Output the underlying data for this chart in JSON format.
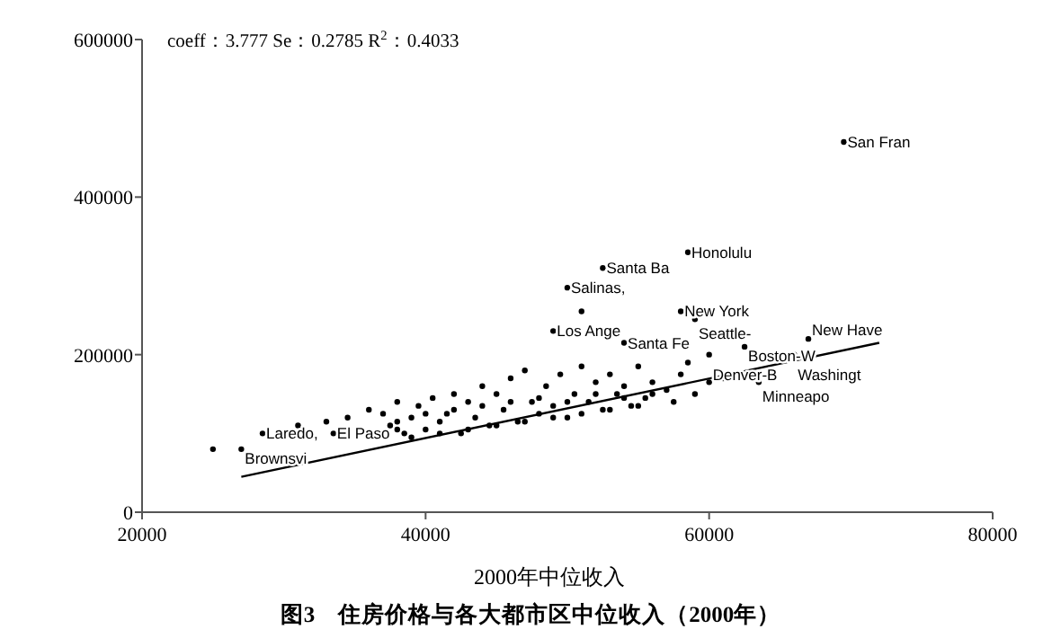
{
  "chart_data": {
    "type": "scatter",
    "title": "图3　住房价格与各大都市区中位收入（2000年）",
    "xlabel": "2000年中位收入",
    "xlim": [
      20000,
      80000
    ],
    "xticks": [
      20000,
      40000,
      60000,
      80000
    ],
    "ylim": [
      0,
      600000
    ],
    "yticks": [
      0,
      200000,
      400000,
      600000
    ],
    "series": [
      {
        "marker": "circle",
        "color": "#000000",
        "x": [
          69500,
          58500,
          52500,
          50000,
          54000,
          51000,
          49000,
          58000,
          59000,
          62500,
          67000,
          66000,
          60000,
          63500,
          58500,
          28500,
          33500,
          27000,
          25000,
          31000,
          33000,
          34500,
          38000,
          36000,
          39000,
          37000,
          37500,
          38000,
          38500,
          39000,
          39500,
          40000,
          40500,
          41000,
          41500,
          42000,
          42500,
          43000,
          43500,
          44000,
          44500,
          45000,
          45500,
          46000,
          46500,
          47000,
          47500,
          48000,
          48500,
          49000,
          49500,
          50000,
          50500,
          51000,
          51500,
          52000,
          52500,
          53000,
          53500,
          54000,
          54500,
          55000,
          55500,
          56000,
          57000,
          57500,
          58000,
          59000,
          60000,
          61000,
          38000,
          40000,
          42000,
          44000,
          46000,
          48000,
          50000,
          52000,
          54000,
          56000,
          41000,
          43000,
          45000,
          47000,
          49000,
          51000,
          53000,
          55000
        ],
        "values": [
          470000,
          330000,
          310000,
          285000,
          215000,
          255000,
          230000,
          255000,
          245000,
          210000,
          220000,
          200000,
          200000,
          165000,
          190000,
          100000,
          100000,
          80000,
          80000,
          110000,
          115000,
          120000,
          105000,
          130000,
          95000,
          125000,
          110000,
          140000,
          100000,
          120000,
          135000,
          105000,
          145000,
          115000,
          125000,
          150000,
          100000,
          140000,
          120000,
          160000,
          110000,
          150000,
          130000,
          170000,
          115000,
          180000,
          140000,
          125000,
          160000,
          135000,
          175000,
          120000,
          150000,
          185000,
          140000,
          165000,
          130000,
          175000,
          150000,
          160000,
          135000,
          185000,
          145000,
          165000,
          155000,
          140000,
          175000,
          150000,
          165000,
          170000,
          115000,
          125000,
          130000,
          135000,
          140000,
          145000,
          140000,
          150000,
          145000,
          150000,
          100000,
          105000,
          110000,
          115000,
          120000,
          125000,
          130000,
          135000
        ]
      },
      {
        "type": "line",
        "color": "#000000",
        "x": [
          27000,
          72000
        ],
        "values": [
          45000,
          215000
        ]
      }
    ],
    "annotations": [
      "coeff：3.777 Se：0.2785 R$^{2}$：0.4033",
      {
        "text": "San Fran",
        "x": 69500,
        "y": 470000
      },
      {
        "text": "Honolulu",
        "x": 58500,
        "y": 330000
      },
      {
        "text": "Santa Ba",
        "x": 52500,
        "y": 310000
      },
      {
        "text": "Salinas,",
        "x": 50000,
        "y": 285000
      },
      {
        "text": "Santa Fe",
        "x": 54000,
        "y": 215000
      },
      {
        "text": "Los Ange",
        "x": 49000,
        "y": 230000
      },
      {
        "text": "New York",
        "x": 58000,
        "y": 255000
      },
      {
        "text": "Seattle-",
        "x": 59000,
        "y": 245000
      },
      {
        "text": "Boston-W",
        "x": 62500,
        "y": 210000
      },
      {
        "text": "New Have",
        "x": 67000,
        "y": 220000
      },
      {
        "text": "Washingt",
        "x": 66000,
        "y": 200000
      },
      {
        "text": "Denver-B",
        "x": 60000,
        "y": 200000
      },
      {
        "text": "Minneapo",
        "x": 63500,
        "y": 165000
      },
      {
        "text": "Laredo,",
        "x": 28500,
        "y": 100000
      },
      {
        "text": "El Paso",
        "x": 33500,
        "y": 100000
      },
      {
        "text": "Brownsvi",
        "x": 27000,
        "y": 80000
      }
    ]
  }
}
